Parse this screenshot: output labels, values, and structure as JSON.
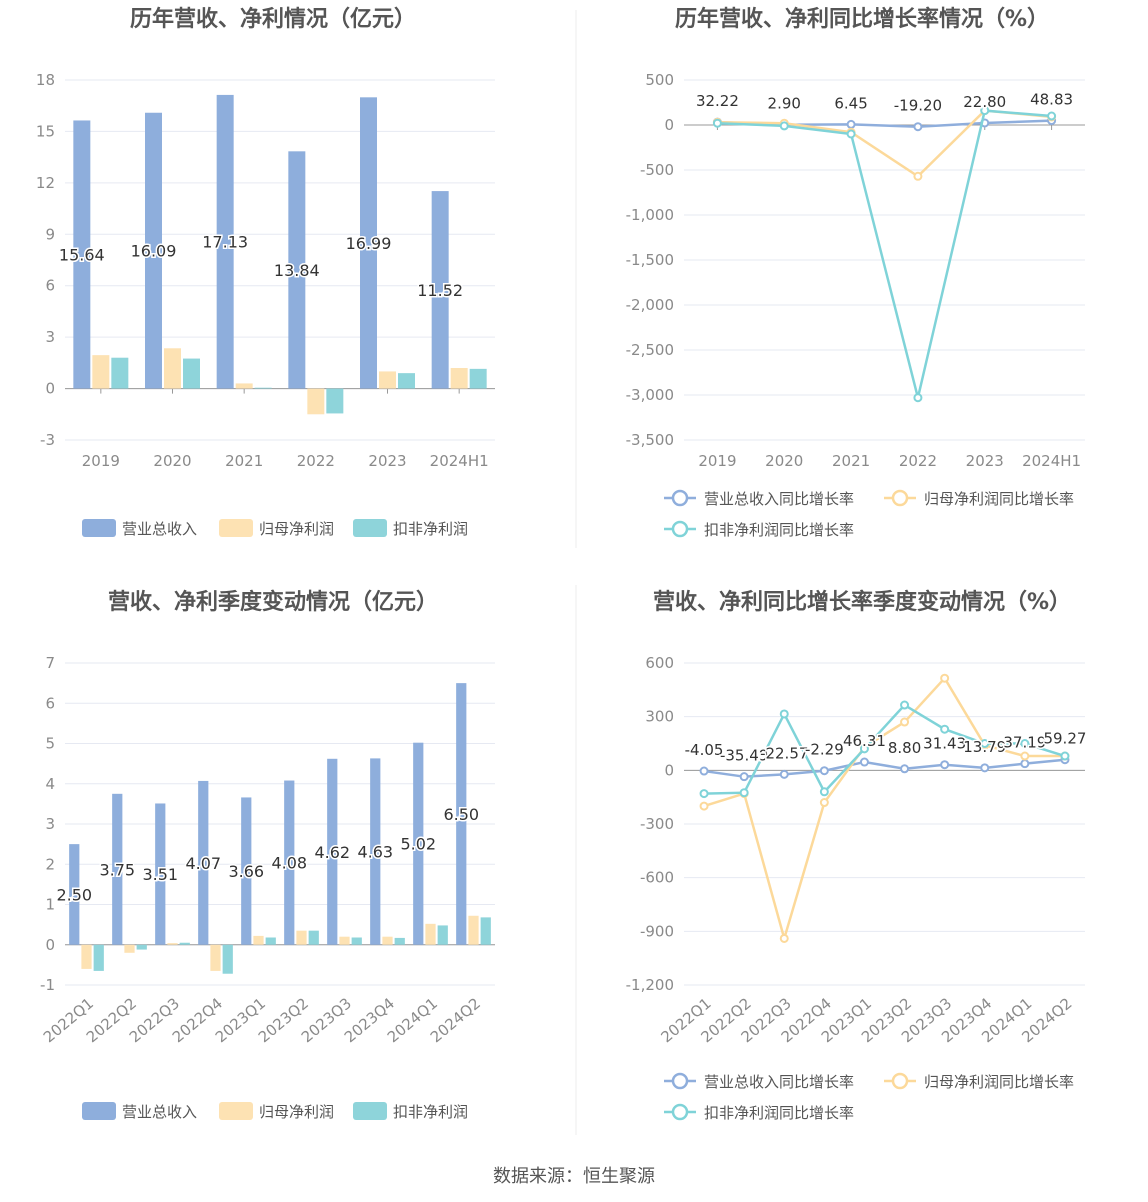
{
  "colors": {
    "revenue": "#8eaedc",
    "net_profit": "#fde2b3",
    "deducted_profit": "#8ed4da",
    "revenue_line": "#8faedc",
    "net_line": "#fcd99a",
    "deducted_line": "#7fd3d8",
    "grid": "#e6e9f2",
    "axis_text": "#8a8a8a",
    "title": "#555555"
  },
  "source": "数据来源：恒生聚源",
  "chart_data": [
    {
      "id": "annual-amount",
      "type": "bar",
      "title": "历年营收、净利情况（亿元）",
      "categories": [
        "2019",
        "2020",
        "2021",
        "2022",
        "2023",
        "2024H1"
      ],
      "ylim": [
        -3,
        18
      ],
      "yticks": [
        -3,
        0,
        3,
        6,
        9,
        12,
        15,
        18
      ],
      "legend": "bottom",
      "series": [
        {
          "name": "营业总收入",
          "values": [
            15.64,
            16.09,
            17.13,
            13.84,
            16.99,
            11.52
          ],
          "labels": [
            "15.64",
            "16.09",
            "17.13",
            "13.84",
            "16.99",
            "11.52"
          ]
        },
        {
          "name": "归母净利润",
          "values": [
            1.95,
            2.35,
            0.3,
            -1.5,
            1.0,
            1.2
          ]
        },
        {
          "name": "扣非净利润",
          "values": [
            1.8,
            1.75,
            0.05,
            -1.45,
            0.9,
            1.15
          ]
        }
      ]
    },
    {
      "id": "annual-growth",
      "type": "line",
      "title": "历年营收、净利同比增长率情况（%）",
      "categories": [
        "2019",
        "2020",
        "2021",
        "2022",
        "2023",
        "2024H1"
      ],
      "ylim": [
        -3500,
        500
      ],
      "yticks": [
        -3500,
        -3000,
        -2500,
        -2000,
        -1500,
        -1000,
        -500,
        0,
        500
      ],
      "ytick_labels": [
        "-3,500",
        "-3,000",
        "-2,500",
        "-2,000",
        "-1,500",
        "-1,000",
        "-500",
        "0",
        "500"
      ],
      "legend": "bottom",
      "series": [
        {
          "name": "营业总收入同比增长率",
          "values": [
            32.22,
            2.9,
            6.45,
            -19.2,
            22.8,
            48.83
          ],
          "labels": [
            "32.22",
            "2.90",
            "6.45",
            "-19.20",
            "22.80",
            "48.83"
          ]
        },
        {
          "name": "归母净利润同比增长率",
          "values": [
            30,
            20,
            -80,
            -570,
            160,
            90
          ]
        },
        {
          "name": "扣非净利润同比增长率",
          "values": [
            20,
            -10,
            -100,
            -3030,
            160,
            100
          ]
        }
      ]
    },
    {
      "id": "quarterly-amount",
      "type": "bar",
      "title": "营收、净利季度变动情况（亿元）",
      "categories": [
        "2022Q1",
        "2022Q2",
        "2022Q3",
        "2022Q4",
        "2023Q1",
        "2023Q2",
        "2023Q3",
        "2023Q4",
        "2024Q1",
        "2024Q2"
      ],
      "ylim": [
        -1,
        7
      ],
      "yticks": [
        -1,
        0,
        1,
        2,
        3,
        4,
        5,
        6,
        7
      ],
      "legend": "bottom",
      "series": [
        {
          "name": "营业总收入",
          "values": [
            2.5,
            3.75,
            3.51,
            4.07,
            3.66,
            4.08,
            4.62,
            4.63,
            5.02,
            6.5
          ],
          "labels": [
            "2.50",
            "3.75",
            "3.51",
            "4.07",
            "3.66",
            "4.08",
            "4.62",
            "4.63",
            "5.02",
            "6.50"
          ]
        },
        {
          "name": "归母净利润",
          "values": [
            -0.6,
            -0.2,
            0.04,
            -0.65,
            0.22,
            0.35,
            0.2,
            0.2,
            0.52,
            0.72
          ]
        },
        {
          "name": "扣非净利润",
          "values": [
            -0.65,
            -0.12,
            0.05,
            -0.72,
            0.18,
            0.35,
            0.18,
            0.17,
            0.48,
            0.68
          ]
        }
      ]
    },
    {
      "id": "quarterly-growth",
      "type": "line",
      "title": "营收、净利同比增长率季度变动情况（%）",
      "categories": [
        "2022Q1",
        "2022Q2",
        "2022Q3",
        "2022Q4",
        "2023Q1",
        "2023Q2",
        "2023Q3",
        "2023Q4",
        "2024Q1",
        "2024Q2"
      ],
      "ylim": [
        -1200,
        600
      ],
      "yticks": [
        -1200,
        -900,
        -600,
        -300,
        0,
        300,
        600
      ],
      "ytick_labels": [
        "-1,200",
        "-900",
        "-600",
        "-300",
        "0",
        "300",
        "600"
      ],
      "legend": "bottom",
      "series": [
        {
          "name": "营业总收入同比增长率",
          "values": [
            -4.05,
            -35.49,
            -22.57,
            -2.29,
            46.31,
            8.8,
            31.43,
            13.79,
            37.19,
            59.27
          ],
          "labels": [
            "-4.05",
            "-35.49",
            "-22.57",
            "-2.29",
            "46.31",
            "8.80",
            "31.43",
            "13.79",
            "37.19",
            "59.27"
          ]
        },
        {
          "name": "归母净利润同比增长率",
          "values": [
            -200,
            -130,
            -940,
            -180,
            130,
            270,
            515,
            140,
            80,
            80
          ]
        },
        {
          "name": "扣非净利润同比增长率",
          "values": [
            -130,
            -125,
            315,
            -120,
            120,
            365,
            230,
            150,
            150,
            80
          ]
        }
      ]
    }
  ]
}
